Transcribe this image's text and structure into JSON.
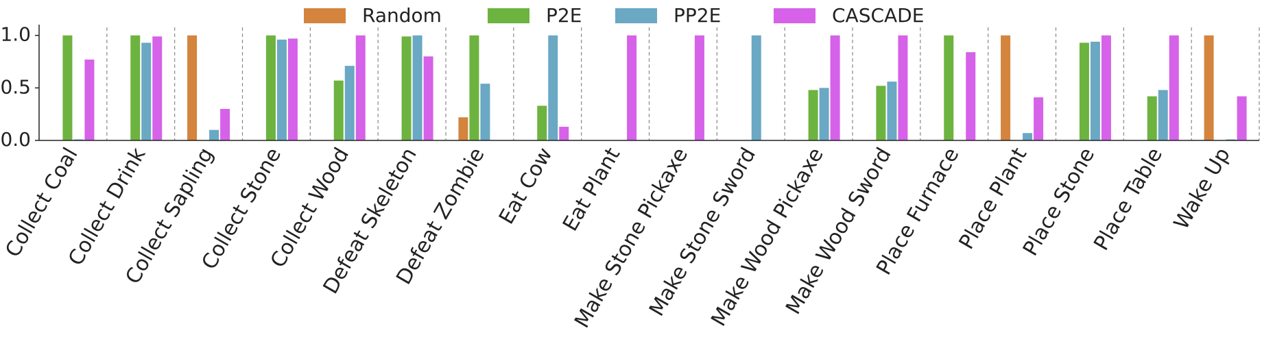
{
  "chart_data": {
    "type": "bar",
    "categories": [
      "Collect Coal",
      "Collect Drink",
      "Collect Sapling",
      "Collect Stone",
      "Collect Wood",
      "Defeat Skeleton",
      "Defeat Zombie",
      "Eat Cow",
      "Eat Plant",
      "Make Stone Pickaxe",
      "Make Stone Sword",
      "Make Wood Pickaxe",
      "Make Wood Sword",
      "Place Furnace",
      "Place Plant",
      "Place Stone",
      "Place Table",
      "Wake Up"
    ],
    "series": [
      {
        "name": "Random",
        "color": "#d4843d",
        "values": [
          0,
          0,
          1.0,
          0,
          0,
          0,
          0.22,
          0,
          0,
          0,
          0,
          0,
          0,
          0,
          1.0,
          0,
          0,
          1.0
        ]
      },
      {
        "name": "P2E",
        "color": "#6db33f",
        "values": [
          1.0,
          1.0,
          0,
          1.0,
          0.57,
          0.99,
          1.0,
          0.33,
          0,
          0,
          0,
          0.48,
          0.52,
          1.0,
          0,
          0.93,
          0.42,
          0
        ]
      },
      {
        "name": "PP2E",
        "color": "#6aa8c4",
        "values": [
          0.01,
          0.93,
          0.1,
          0.96,
          0.71,
          1.0,
          0.54,
          1.0,
          0,
          0,
          1.0,
          0.5,
          0.56,
          0,
          0.07,
          0.94,
          0.48,
          0.01
        ]
      },
      {
        "name": "CASCADE",
        "color": "#d562e8",
        "values": [
          0.77,
          0.99,
          0.3,
          0.97,
          1.0,
          0.8,
          0,
          0.13,
          1.0,
          1.0,
          0,
          1.0,
          1.0,
          0.84,
          0.41,
          1.0,
          1.0,
          0.42
        ]
      }
    ],
    "ylim": [
      0,
      1.05
    ],
    "yticks": [
      {
        "value": 0,
        "label": "0.0"
      },
      {
        "value": 0.5,
        "label": "0.5"
      },
      {
        "value": 1.0,
        "label": "1.0"
      }
    ]
  }
}
